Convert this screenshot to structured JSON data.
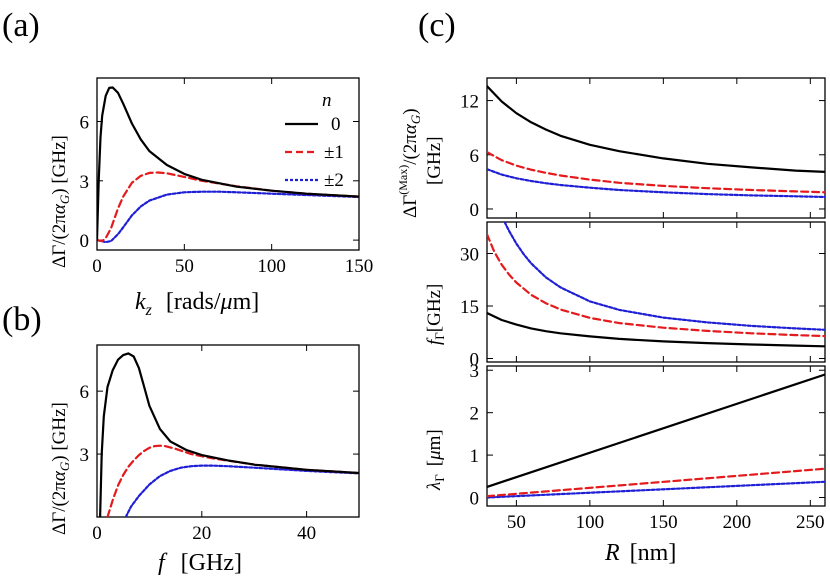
{
  "figure": {
    "panel_labels": [
      "(a)",
      "(b)",
      "(c)"
    ],
    "legend_title": "n",
    "legend": [
      {
        "label": "0",
        "color": "#000000",
        "dash": "solid"
      },
      {
        "label": "±1",
        "color": "#e41a1c",
        "dash": "dashed"
      },
      {
        "label": "±2",
        "color": "#1f1fd6",
        "dash": "dotted"
      }
    ]
  },
  "chart_data": [
    {
      "id": "a",
      "type": "line",
      "xlabel": "k_z  [rads/μm]",
      "ylabel": "ΔΓ/(2πα_G) [GHz]",
      "xlim": [
        0,
        150
      ],
      "ylim": [
        -0.5,
        8.2
      ],
      "xticks": [
        0,
        50,
        100,
        150
      ],
      "yticks": [
        0,
        3,
        6
      ],
      "series": [
        {
          "name": "0",
          "x": [
            0,
            1,
            2,
            3,
            5,
            7,
            9,
            12,
            15,
            20,
            25,
            30,
            40,
            50,
            60,
            80,
            100,
            120,
            150
          ],
          "y": [
            0,
            3.0,
            5.2,
            6.3,
            7.3,
            7.7,
            7.72,
            7.45,
            6.9,
            5.9,
            5.1,
            4.5,
            3.8,
            3.35,
            3.05,
            2.7,
            2.5,
            2.35,
            2.2
          ]
        },
        {
          "name": "±1",
          "x": [
            0,
            3,
            5,
            8,
            10,
            12,
            15,
            20,
            25,
            30,
            35,
            40,
            50,
            60,
            80,
            100,
            120,
            150
          ],
          "y": [
            0,
            -0.05,
            0.1,
            0.6,
            1.1,
            1.6,
            2.2,
            2.9,
            3.25,
            3.4,
            3.42,
            3.38,
            3.2,
            3.0,
            2.72,
            2.5,
            2.35,
            2.2
          ]
        },
        {
          "name": "±2",
          "x": [
            0,
            5,
            8,
            12,
            15,
            20,
            25,
            30,
            40,
            50,
            60,
            70,
            80,
            100,
            120,
            150
          ],
          "y": [
            0,
            -0.1,
            -0.05,
            0.3,
            0.65,
            1.25,
            1.7,
            2.0,
            2.3,
            2.42,
            2.45,
            2.45,
            2.42,
            2.35,
            2.28,
            2.18
          ]
        }
      ]
    },
    {
      "id": "b",
      "type": "line",
      "xlabel": "f  [GHz]",
      "ylabel": "ΔΓ/(2πα_G) [GHz]",
      "xlim": [
        0,
        50
      ],
      "ylim": [
        0,
        8.2
      ],
      "xticks": [
        0,
        20,
        40
      ],
      "yticks": [
        3,
        6
      ],
      "series": [
        {
          "name": "0",
          "x": [
            0.6,
            0.9,
            1.3,
            2,
            3,
            4,
            5,
            6,
            7,
            8,
            9,
            10,
            12,
            14,
            17,
            20,
            25,
            30,
            40,
            50
          ],
          "y": [
            0,
            3.0,
            4.8,
            6.2,
            7.0,
            7.5,
            7.72,
            7.8,
            7.65,
            7.1,
            6.2,
            5.3,
            4.2,
            3.6,
            3.2,
            2.95,
            2.7,
            2.5,
            2.25,
            2.1
          ]
        },
        {
          "name": "±1",
          "x": [
            2.0,
            3,
            4,
            5,
            6,
            7,
            8,
            9,
            10,
            11,
            12,
            13,
            15,
            18,
            22,
            30,
            40,
            50
          ],
          "y": [
            0,
            0.8,
            1.5,
            2.0,
            2.4,
            2.7,
            2.95,
            3.15,
            3.3,
            3.38,
            3.4,
            3.38,
            3.25,
            3.0,
            2.8,
            2.5,
            2.25,
            2.1
          ]
        },
        {
          "name": "±2",
          "x": [
            5.5,
            6.5,
            8,
            10,
            12,
            14,
            16,
            18,
            20,
            22,
            25,
            30,
            40,
            50
          ],
          "y": [
            0,
            0.5,
            1.0,
            1.55,
            1.95,
            2.2,
            2.35,
            2.42,
            2.45,
            2.45,
            2.42,
            2.35,
            2.2,
            2.08
          ]
        }
      ]
    },
    {
      "id": "c-top",
      "type": "line",
      "xlabel": "",
      "ylabel": "ΔΓ^(Max)/(2πα_G) [GHz]",
      "xlim": [
        30,
        260
      ],
      "ylim": [
        -1,
        14.5
      ],
      "xticks": [
        50,
        100,
        150,
        200,
        250
      ],
      "yticks": [
        0,
        6,
        12
      ],
      "series": [
        {
          "name": "0",
          "x": [
            30,
            40,
            50,
            60,
            70,
            80,
            100,
            120,
            150,
            180,
            210,
            240,
            260
          ],
          "y": [
            13.6,
            11.9,
            10.6,
            9.6,
            8.8,
            8.1,
            7.1,
            6.4,
            5.6,
            5.0,
            4.6,
            4.25,
            4.1
          ]
        },
        {
          "name": "±1",
          "x": [
            30,
            40,
            50,
            60,
            70,
            80,
            100,
            120,
            150,
            180,
            210,
            240,
            260
          ],
          "y": [
            6.3,
            5.4,
            4.8,
            4.35,
            4.0,
            3.7,
            3.25,
            2.9,
            2.55,
            2.3,
            2.1,
            1.95,
            1.85
          ]
        },
        {
          "name": "±2",
          "x": [
            30,
            40,
            50,
            60,
            70,
            80,
            100,
            120,
            150,
            180,
            210,
            240,
            260
          ],
          "y": [
            4.4,
            3.8,
            3.4,
            3.1,
            2.85,
            2.65,
            2.35,
            2.1,
            1.85,
            1.65,
            1.5,
            1.4,
            1.33
          ]
        }
      ]
    },
    {
      "id": "c-mid",
      "type": "line",
      "xlabel": "",
      "ylabel": "f_Γ [GHz]",
      "xlim": [
        30,
        260
      ],
      "ylim": [
        -1,
        39
      ],
      "xticks": [
        50,
        100,
        150,
        200,
        250
      ],
      "yticks": [
        0,
        15,
        30
      ],
      "series": [
        {
          "name": "0",
          "x": [
            30,
            40,
            50,
            60,
            70,
            80,
            100,
            120,
            150,
            180,
            210,
            240,
            260
          ],
          "y": [
            13.0,
            11.0,
            9.7,
            8.6,
            7.8,
            7.2,
            6.3,
            5.6,
            4.9,
            4.4,
            4.0,
            3.7,
            3.5
          ]
        },
        {
          "name": "±1",
          "x": [
            30,
            35,
            40,
            45,
            50,
            60,
            70,
            80,
            100,
            120,
            150,
            180,
            210,
            240,
            260
          ],
          "y": [
            35.5,
            30.5,
            26.8,
            24.0,
            21.7,
            18.2,
            15.8,
            14.0,
            11.6,
            10.1,
            8.8,
            7.9,
            7.2,
            6.7,
            6.4
          ]
        },
        {
          "name": "±2",
          "x": [
            42,
            45,
            50,
            55,
            60,
            70,
            80,
            100,
            120,
            150,
            180,
            210,
            240,
            260
          ],
          "y": [
            39,
            36.5,
            32.8,
            29.8,
            27.2,
            23.2,
            20.3,
            16.3,
            13.9,
            11.7,
            10.3,
            9.3,
            8.6,
            8.2
          ]
        }
      ]
    },
    {
      "id": "c-bot",
      "type": "line",
      "xlabel": "R  [nm]",
      "ylabel": "λ_Γ  [μm]",
      "xlim": [
        30,
        260
      ],
      "ylim": [
        -0.2,
        3.1
      ],
      "xticks": [
        50,
        100,
        150,
        200,
        250
      ],
      "yticks": [
        0,
        1,
        2,
        3
      ],
      "series": [
        {
          "name": "0",
          "x": [
            30,
            260
          ],
          "y": [
            0.25,
            2.9
          ]
        },
        {
          "name": "±1",
          "x": [
            30,
            260
          ],
          "y": [
            0.03,
            0.68
          ]
        },
        {
          "name": "±2",
          "x": [
            30,
            260
          ],
          "y": [
            0.0,
            0.37
          ]
        }
      ]
    }
  ]
}
